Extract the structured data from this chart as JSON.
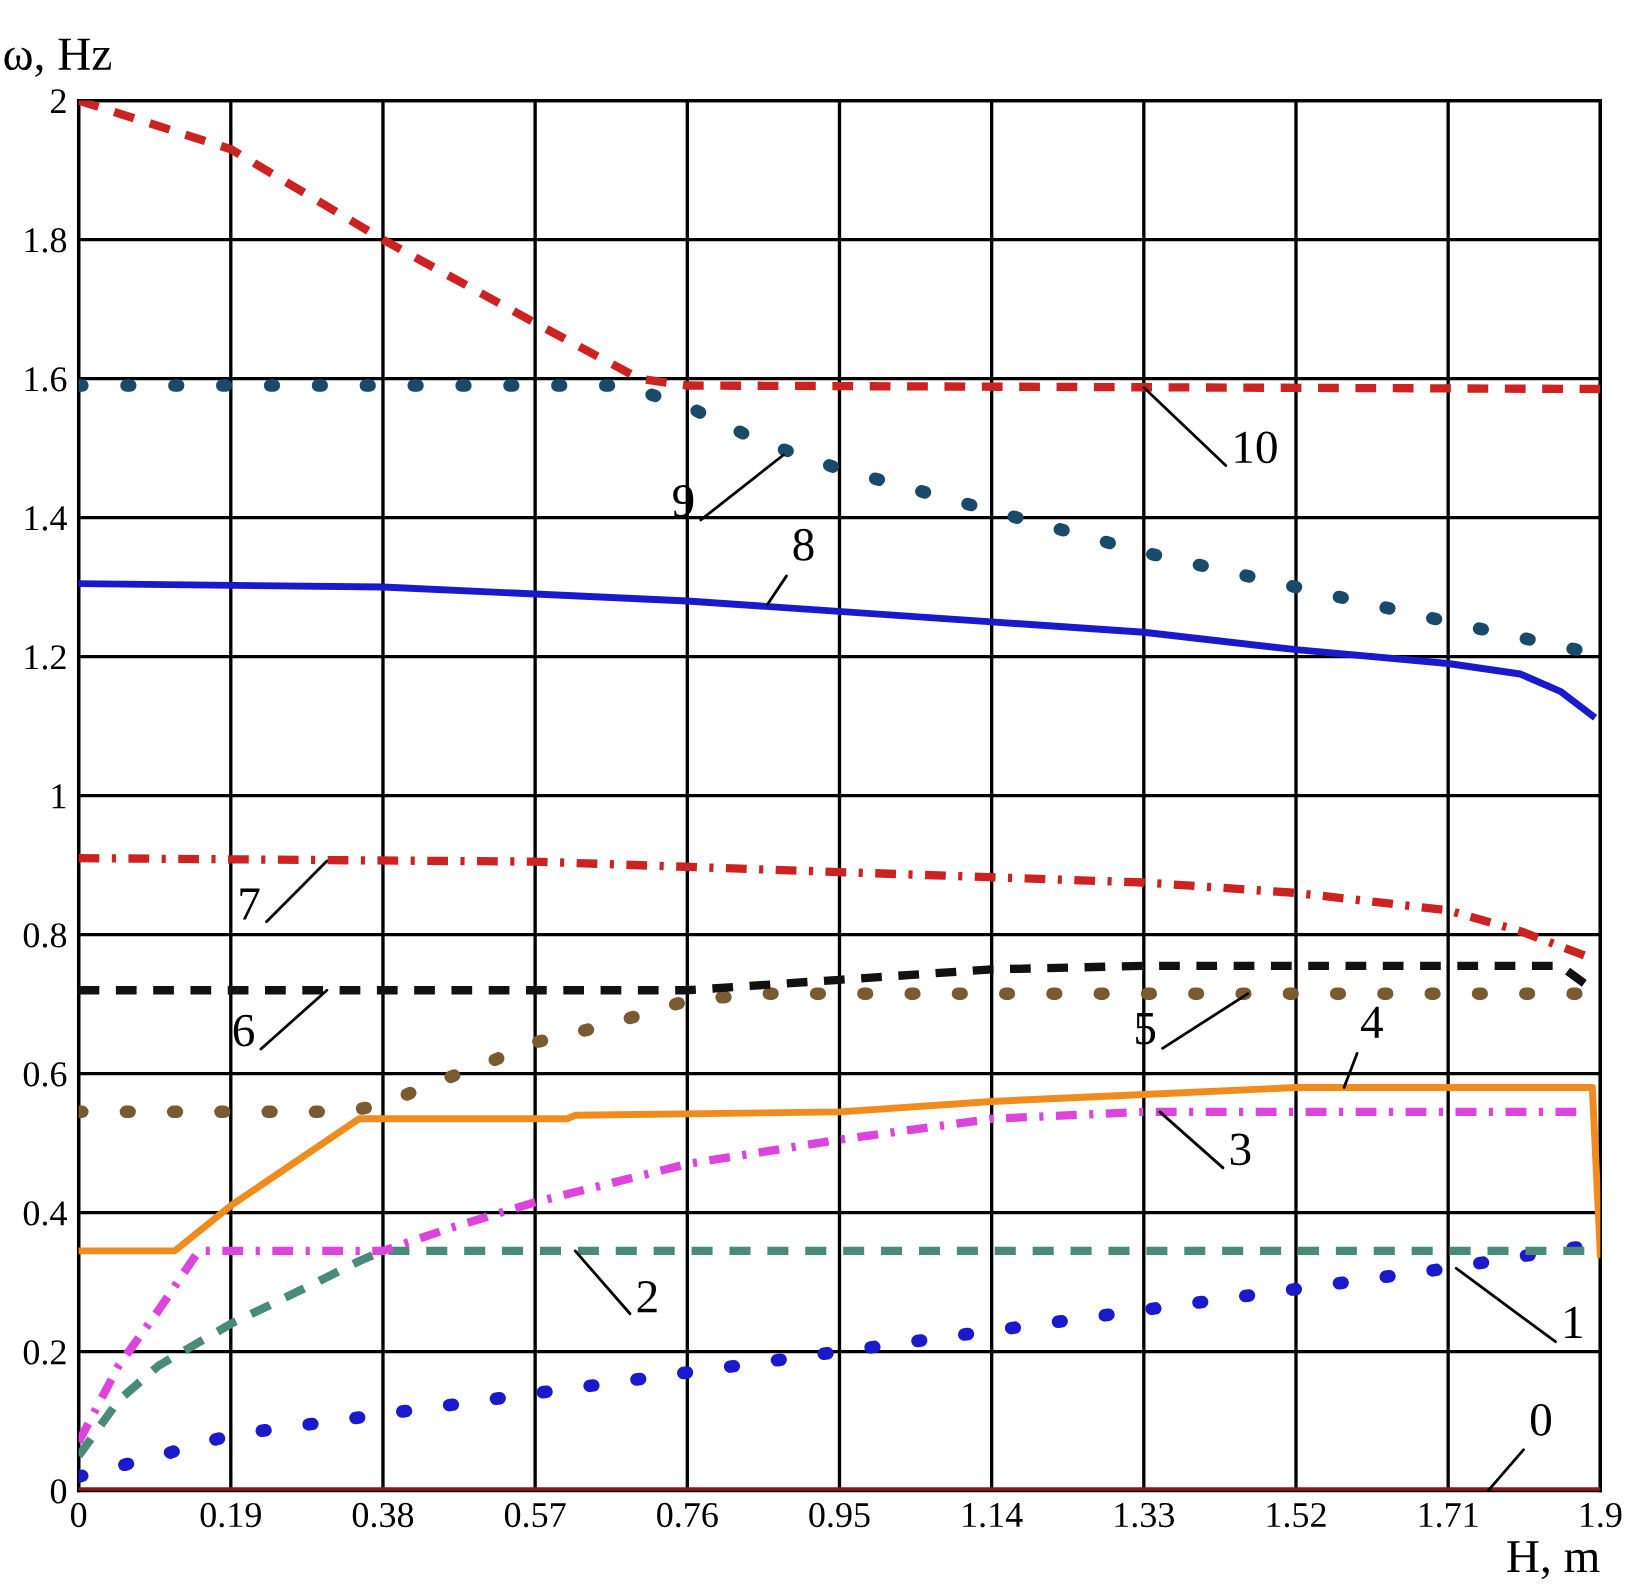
{
  "chart_data": {
    "type": "line",
    "xlabel": "H, m",
    "ylabel": "ω, Hz",
    "xlim": [
      0,
      1.9
    ],
    "ylim": [
      0,
      2
    ],
    "xticks": [
      0,
      0.19,
      0.38,
      0.57,
      0.76,
      0.95,
      1.14,
      1.33,
      1.52,
      1.71,
      1.9
    ],
    "yticks": [
      0,
      0.2,
      0.4,
      0.6,
      0.8,
      1,
      1.2,
      1.4,
      1.6,
      1.8,
      2
    ],
    "grid": true,
    "legend": false,
    "series": [
      {
        "color": "#8b1a1a",
        "line_style": "solid",
        "x": [
          0,
          1.9
        ],
        "values": [
          0,
          0
        ]
      },
      {
        "color": "#1a1acc",
        "line_style": "dotted",
        "x": [
          0,
          0.1,
          0.19,
          0.38,
          0.57,
          0.76,
          0.95,
          1.14,
          1.33,
          1.52,
          1.71,
          1.87
        ],
        "values": [
          0.02,
          0.05,
          0.08,
          0.11,
          0.14,
          0.17,
          0.2,
          0.23,
          0.26,
          0.29,
          0.32,
          0.35
        ]
      },
      {
        "color": "#4a8a7a",
        "line_style": "dashed",
        "x": [
          0,
          0.05,
          0.1,
          0.19,
          0.28,
          0.35,
          0.38,
          1.88
        ],
        "values": [
          0.05,
          0.13,
          0.18,
          0.24,
          0.29,
          0.33,
          0.345,
          0.345
        ]
      },
      {
        "color": "#dd44dd",
        "line_style": "dashdot",
        "x": [
          0,
          0.05,
          0.1,
          0.15,
          0.38,
          0.47,
          0.57,
          0.76,
          0.95,
          1.14,
          1.33,
          1.87
        ],
        "values": [
          0.07,
          0.18,
          0.26,
          0.345,
          0.345,
          0.38,
          0.415,
          0.47,
          0.505,
          0.535,
          0.545,
          0.545
        ]
      },
      {
        "color": "#f08c1e",
        "line_style": "solid",
        "x": [
          0,
          0.12,
          0.19,
          0.35,
          0.61,
          0.62,
          0.95,
          1.14,
          1.33,
          1.52,
          1.71,
          1.89,
          1.9
        ],
        "values": [
          0.345,
          0.345,
          0.41,
          0.535,
          0.535,
          0.54,
          0.545,
          0.56,
          0.57,
          0.58,
          0.58,
          0.58,
          0.34
        ]
      },
      {
        "color": "#7a5a30",
        "line_style": "dotted",
        "x": [
          0,
          0.33,
          0.38,
          0.43,
          0.52,
          0.57,
          0.66,
          0.76,
          0.85,
          0.95,
          1.87
        ],
        "values": [
          0.545,
          0.545,
          0.555,
          0.58,
          0.62,
          0.645,
          0.67,
          0.705,
          0.715,
          0.715,
          0.715
        ]
      },
      {
        "color": "#111111",
        "line_style": "dashed",
        "x": [
          0,
          0.76,
          0.95,
          1.14,
          1.33,
          1.85,
          1.88
        ],
        "values": [
          0.72,
          0.72,
          0.735,
          0.75,
          0.755,
          0.755,
          0.73
        ]
      },
      {
        "color": "#cc2222",
        "line_style": "dashdot",
        "x": [
          0,
          0.57,
          0.95,
          1.33,
          1.52,
          1.71,
          1.8,
          1.88
        ],
        "values": [
          0.91,
          0.905,
          0.89,
          0.875,
          0.86,
          0.835,
          0.805,
          0.77
        ]
      },
      {
        "color": "#1a1acc",
        "line_style": "solid",
        "x": [
          0,
          0.38,
          0.76,
          1.14,
          1.33,
          1.52,
          1.71,
          1.8,
          1.85,
          1.89
        ],
        "values": [
          1.305,
          1.3,
          1.28,
          1.25,
          1.235,
          1.21,
          1.19,
          1.175,
          1.15,
          1.115
        ]
      },
      {
        "color": "#1a4a6a",
        "line_style": "dotted",
        "x": [
          0,
          0.68,
          0.76,
          0.85,
          0.95,
          1.14,
          1.33,
          1.52,
          1.71,
          1.87
        ],
        "values": [
          1.59,
          1.59,
          1.56,
          1.51,
          1.47,
          1.41,
          1.35,
          1.3,
          1.25,
          1.21
        ]
      },
      {
        "color": "#cc2222",
        "line_style": "dashed",
        "x": [
          0,
          0.19,
          0.38,
          0.57,
          0.7,
          0.76,
          1.9
        ],
        "values": [
          2.0,
          1.93,
          1.8,
          1.68,
          1.6,
          1.59,
          1.585
        ]
      }
    ],
    "annotations": [
      {
        "text": "0",
        "x": 1.76,
        "y": 0
      },
      {
        "text": "1",
        "x": 1.72,
        "y": 0.32
      },
      {
        "text": "2",
        "x": 0.62,
        "y": 0.345
      },
      {
        "text": "3",
        "x": 1.35,
        "y": 0.545
      },
      {
        "text": "4",
        "x": 1.58,
        "y": 0.58
      },
      {
        "text": "5",
        "x": 1.46,
        "y": 0.715
      },
      {
        "text": "6",
        "x": 0.31,
        "y": 0.72
      },
      {
        "text": "7",
        "x": 0.31,
        "y": 0.906
      },
      {
        "text": "8",
        "x": 0.86,
        "y": 1.275
      },
      {
        "text": "9",
        "x": 0.88,
        "y": 1.49
      },
      {
        "text": "10",
        "x": 1.33,
        "y": 1.587
      }
    ]
  }
}
